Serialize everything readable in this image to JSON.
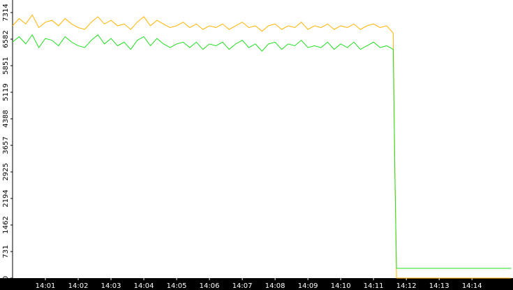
{
  "chart_data": {
    "type": "line",
    "x": [
      0,
      0.2,
      0.4,
      0.6,
      0.8,
      1,
      1.2,
      1.4,
      1.6,
      1.8,
      2,
      2.2,
      2.4,
      2.6,
      2.8,
      3,
      3.2,
      3.4,
      3.6,
      3.8,
      4,
      4.2,
      4.4,
      4.6,
      4.8,
      5,
      5.2,
      5.4,
      5.6,
      5.8,
      6,
      6.2,
      6.4,
      6.6,
      6.8,
      7,
      7.2,
      7.4,
      7.6,
      7.8,
      8,
      8.2,
      8.4,
      8.6,
      8.8,
      9,
      9.2,
      9.4,
      9.6,
      9.8,
      10,
      10.2,
      10.4,
      10.6,
      10.8,
      11,
      11.2,
      11.4,
      11.6,
      11.65,
      11.7,
      15.2
    ],
    "series": [
      {
        "name": "orange",
        "color": "#ffb400",
        "values": [
          6950,
          7150,
          7000,
          7250,
          6900,
          7050,
          7100,
          6950,
          7150,
          7000,
          6900,
          6850,
          7050,
          7200,
          7000,
          7100,
          6950,
          7000,
          6850,
          7050,
          7200,
          6950,
          7100,
          7000,
          6900,
          6950,
          7050,
          6900,
          7000,
          6850,
          6950,
          6900,
          7000,
          6850,
          6950,
          7050,
          6900,
          6950,
          6800,
          6950,
          7000,
          6850,
          6950,
          6900,
          7050,
          6850,
          6950,
          6900,
          7000,
          6850,
          6950,
          6900,
          7000,
          6850,
          6950,
          7000,
          6900,
          6950,
          6750,
          3000,
          0,
          0
        ]
      },
      {
        "name": "green",
        "color": "#22dd22",
        "values": [
          6500,
          6650,
          6450,
          6700,
          6350,
          6600,
          6550,
          6400,
          6650,
          6500,
          6400,
          6350,
          6550,
          6700,
          6450,
          6600,
          6400,
          6500,
          6300,
          6550,
          6650,
          6400,
          6600,
          6450,
          6350,
          6450,
          6500,
          6350,
          6500,
          6300,
          6450,
          6400,
          6500,
          6300,
          6450,
          6550,
          6350,
          6450,
          6250,
          6450,
          6500,
          6300,
          6450,
          6400,
          6550,
          6350,
          6400,
          6350,
          6500,
          6300,
          6450,
          6350,
          6500,
          6300,
          6400,
          6500,
          6350,
          6400,
          6300,
          2900,
          270,
          270
        ]
      }
    ],
    "xlim": [
      0,
      15.25
    ],
    "xticks": [
      {
        "value": 1,
        "label": "14:01"
      },
      {
        "value": 2,
        "label": "14:02"
      },
      {
        "value": 3,
        "label": "14:03"
      },
      {
        "value": 4,
        "label": "14:04"
      },
      {
        "value": 5,
        "label": "14:05"
      },
      {
        "value": 6,
        "label": "14:06"
      },
      {
        "value": 7,
        "label": "14:07"
      },
      {
        "value": 8,
        "label": "14:08"
      },
      {
        "value": 9,
        "label": "14:09"
      },
      {
        "value": 10,
        "label": "14:10"
      },
      {
        "value": 11,
        "label": "14:11"
      },
      {
        "value": 12,
        "label": "14:12"
      },
      {
        "value": 13,
        "label": "14:13"
      },
      {
        "value": 14,
        "label": "14:14"
      }
    ],
    "ylim": [
      0,
      7660
    ],
    "yticks": [
      0,
      731,
      1462,
      2194,
      2925,
      3657,
      4388,
      5119,
      5851,
      6582,
      7314
    ]
  }
}
